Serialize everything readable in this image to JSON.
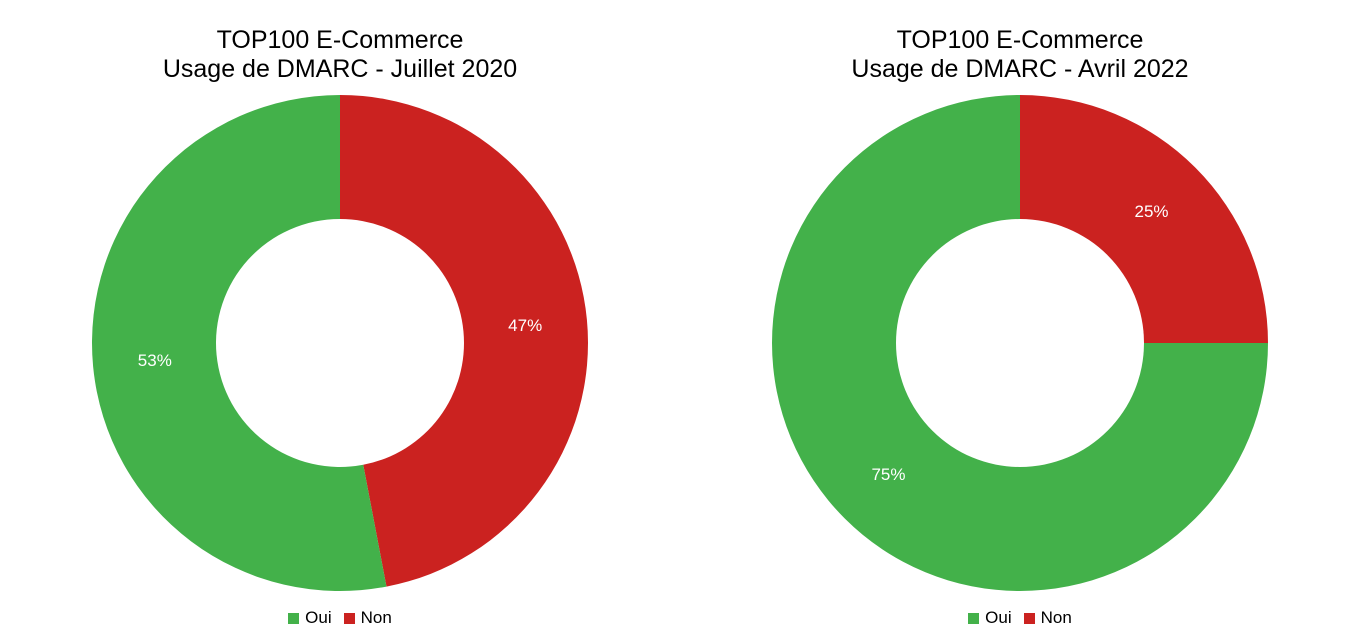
{
  "colors": {
    "oui": "#43b14a",
    "non": "#cb2220",
    "label": "#ffffff",
    "background": "#ffffff"
  },
  "chart_data": [
    {
      "type": "pie",
      "variant": "donut",
      "title_line1": "TOP100 E-Commerce",
      "title_line2": "Usage de DMARC - Juillet 2020",
      "legend_position": "bottom",
      "categories": [
        "Oui",
        "Non"
      ],
      "values": [
        53,
        47
      ],
      "labels": [
        "53%",
        "47%"
      ],
      "colors": [
        "#43b14a",
        "#cb2220"
      ]
    },
    {
      "type": "pie",
      "variant": "donut",
      "title_line1": "TOP100 E-Commerce",
      "title_line2": "Usage de DMARC - Avril 2022",
      "legend_position": "bottom",
      "categories": [
        "Oui",
        "Non"
      ],
      "values": [
        75,
        25
      ],
      "labels": [
        "75%",
        "25%"
      ],
      "colors": [
        "#43b14a",
        "#cb2220"
      ]
    }
  ]
}
